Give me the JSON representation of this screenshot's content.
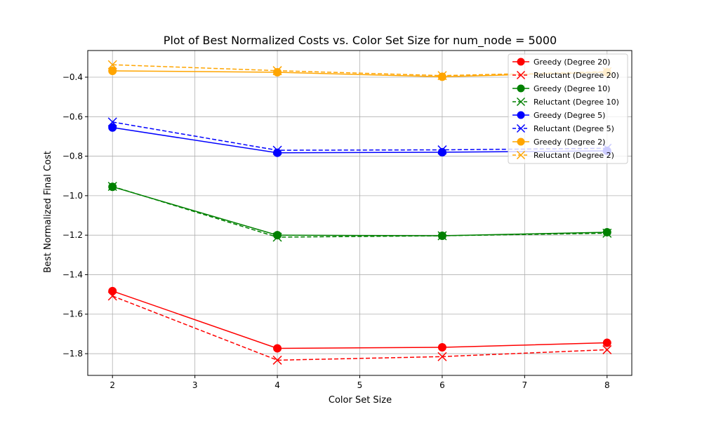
{
  "chart_data": {
    "type": "line",
    "title": "Plot of Best Normalized Costs vs. Color Set Size for num_node = 5000",
    "xlabel": "Color Set Size",
    "ylabel": "Best Normalized Final Cost",
    "xlim": [
      1.7,
      8.3
    ],
    "ylim": [
      -1.91,
      -0.265
    ],
    "x_ticks": [
      2,
      3,
      4,
      5,
      6,
      7,
      8
    ],
    "x_tick_labels": [
      "2",
      "3",
      "4",
      "5",
      "6",
      "7",
      "8"
    ],
    "y_ticks": [
      -1.8,
      -1.6,
      -1.4,
      -1.2,
      -1.0,
      -0.8,
      -0.6,
      -0.4
    ],
    "y_tick_labels": [
      "−1.8",
      "−1.6",
      "−1.4",
      "−1.2",
      "−1.0",
      "−0.8",
      "−0.6",
      "−0.4"
    ],
    "grid": true,
    "legend_position": "upper right",
    "x": [
      2,
      4,
      6,
      8
    ],
    "series": [
      {
        "name": "Greedy (Degree 20)",
        "values": [
          -1.483,
          -1.773,
          -1.768,
          -1.745
        ],
        "color": "#ff0000",
        "linestyle": "solid",
        "marker": "circle"
      },
      {
        "name": "Reluctant (Degree 20)",
        "values": [
          -1.508,
          -1.833,
          -1.815,
          -1.78
        ],
        "color": "#ff0000",
        "linestyle": "dashed",
        "marker": "x"
      },
      {
        "name": "Greedy (Degree 10)",
        "values": [
          -0.955,
          -1.2,
          -1.203,
          -1.185
        ],
        "color": "#008000",
        "linestyle": "solid",
        "marker": "circle"
      },
      {
        "name": "Reluctant (Degree 10)",
        "values": [
          -0.953,
          -1.21,
          -1.203,
          -1.19
        ],
        "color": "#008000",
        "linestyle": "dashed",
        "marker": "x"
      },
      {
        "name": "Greedy (Degree 5)",
        "values": [
          -0.655,
          -0.783,
          -0.78,
          -0.773
        ],
        "color": "#0000ff",
        "linestyle": "solid",
        "marker": "circle"
      },
      {
        "name": "Reluctant (Degree 5)",
        "values": [
          -0.627,
          -0.77,
          -0.768,
          -0.76
        ],
        "color": "#0000ff",
        "linestyle": "dashed",
        "marker": "x"
      },
      {
        "name": "Greedy (Degree 2)",
        "values": [
          -0.368,
          -0.375,
          -0.398,
          -0.375
        ],
        "color": "#ffa500",
        "linestyle": "solid",
        "marker": "circle"
      },
      {
        "name": "Reluctant (Degree 2)",
        "values": [
          -0.337,
          -0.367,
          -0.392,
          -0.372
        ],
        "color": "#ffa500",
        "linestyle": "dashed",
        "marker": "x"
      }
    ]
  }
}
